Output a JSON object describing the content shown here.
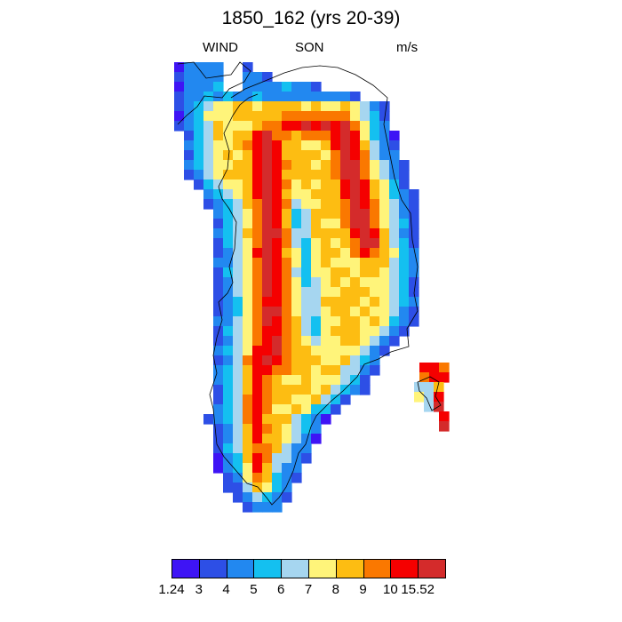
{
  "title": "1850_162 (yrs 20-39)",
  "subtitle_left": "WIND",
  "subtitle_center": "SON",
  "subtitle_right": "m/s",
  "colorbar": {
    "colors": [
      "#3e14f5",
      "#2d4fe6",
      "#2288f0",
      "#14c0f0",
      "#a6d6f0",
      "#fff47a",
      "#fdbd12",
      "#fa7800",
      "#f50000",
      "#d42b2b"
    ],
    "labels": [
      "1.24",
      "3",
      "4",
      "5",
      "6",
      "7",
      "8",
      "9",
      "10",
      "15.52"
    ]
  }
}
